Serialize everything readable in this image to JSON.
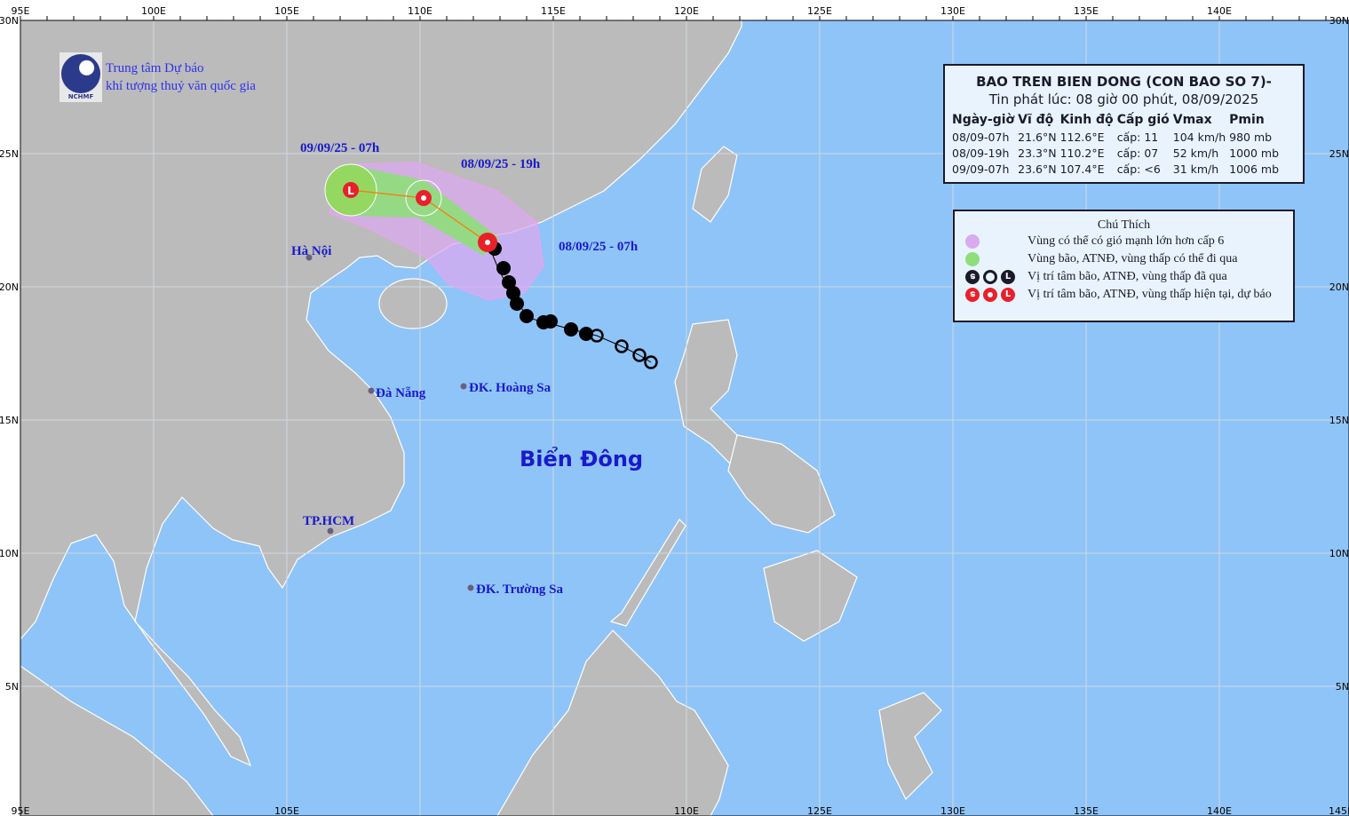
{
  "header": {
    "org_line1": "Trung tâm Dự báo",
    "org_line2": "khí tượng thuỷ văn quốc gia",
    "logo_text": "NCHMF"
  },
  "axes": {
    "top_labels": [
      "95E",
      "100E",
      "105E",
      "110E",
      "115E",
      "120E",
      "125E",
      "130E",
      "135E",
      "140E"
    ],
    "bottom_labels": [
      "95E",
      "105E",
      "110E",
      "125E",
      "130E",
      "135E",
      "140E",
      "145E"
    ],
    "left_labels": [
      "30N",
      "25N",
      "20N",
      "15N",
      "10N",
      "5N"
    ],
    "right_labels": [
      "30N",
      "25N",
      "20N",
      "15N",
      "10N",
      "5N"
    ]
  },
  "places": {
    "hanoi": "Hà Nội",
    "danang": "Đà Nẵng",
    "hoangsa": "ĐK. Hoàng Sa",
    "hcm": "TP.HCM",
    "truongsa": "ĐK. Trường Sa",
    "sea": "Biển Đông"
  },
  "track_labels": {
    "t0": "08/09/25 - 07h",
    "t1": "08/09/25 - 19h",
    "t2": "09/09/25 - 07h"
  },
  "info": {
    "title": "BAO TREN BIEN DONG (CON BAO SO 7)-",
    "issued": "Tin phát lúc: 08 giờ 00 phút, 08/09/2025",
    "columns": [
      "Ngày-giờ",
      "Vĩ độ",
      "Kinh độ",
      "Cấp gió",
      "Vmax",
      "Pmin"
    ],
    "rows": [
      [
        "08/09-07h",
        "21.6°N",
        "112.6°E",
        "cấp: 11",
        "104 km/h",
        "980 mb"
      ],
      [
        "08/09-19h",
        "23.3°N",
        "110.2°E",
        "cấp: 07",
        "52 km/h",
        "1000 mb"
      ],
      [
        "09/09-07h",
        "23.6°N",
        "107.4°E",
        "cấp: <6",
        "31 km/h",
        "1006 mb"
      ]
    ]
  },
  "legend": {
    "title": "Chú Thích",
    "items": [
      {
        "label": "Vùng có thể có gió mạnh lớn hơn cấp 6",
        "color": "#d9aaf0"
      },
      {
        "label": "Vùng bão, ATNĐ, vùng thấp có thể đi qua",
        "color": "#8ede7a"
      },
      {
        "label": "Vị trí tâm bão, ATNĐ, vùng thấp đã qua",
        "color": "#1a1a2a"
      },
      {
        "label": "Vị trí tâm bão, ATNĐ, vùng thấp hiện tại, dự báo",
        "color": "#e8202a"
      }
    ]
  },
  "colors": {
    "sea": "#8fc4f8",
    "land": "#bbbbbb",
    "forecast": "#e8202a",
    "past": "#000000"
  }
}
